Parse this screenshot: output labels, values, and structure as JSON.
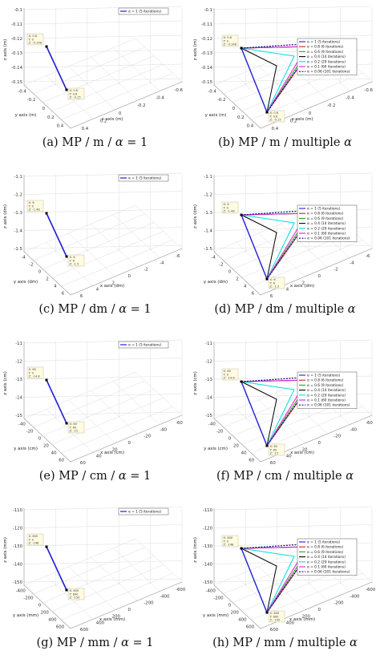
{
  "figure": {
    "panels": [
      {
        "caption_pre": "(a) MP / m / ",
        "caption_sym": "α",
        "caption_post": " = 1",
        "z_label": "z axis (m)",
        "y_label": "y axis (m)",
        "x_label": "x axis (m)",
        "z_ticks": [
          "-0.1",
          "-0.11",
          "-0.12",
          "-0.13",
          "-0.14",
          "-0.15"
        ],
        "y_ticks": [
          "-0.4",
          "-0.2",
          "0",
          "0.2",
          "0.4"
        ],
        "x_ticks": [
          "0.4",
          "0.2",
          "0",
          "-0.2",
          "-0.4",
          "-0.6"
        ],
        "tip_top": [
          "X: 0.6",
          "Y: 0",
          "Z: -0.148"
        ],
        "tip_bottom": [
          "X: 0.6",
          "Y: 0.6",
          "Z: -0.15"
        ]
      },
      {
        "caption_pre": "(b) MP / m / multiple ",
        "caption_sym": "α",
        "caption_post": "",
        "z_label": "z axis (m)",
        "y_label": "y axis (m)",
        "x_label": "x axis (m)",
        "z_ticks": [
          "-0.1",
          "-0.11",
          "-0.12",
          "-0.13",
          "-0.14",
          "-0.15"
        ],
        "y_ticks": [
          "-0.4",
          "-0.2",
          "0",
          "0.2",
          "0.4"
        ],
        "x_ticks": [
          "0.4",
          "0.2",
          "0",
          "-0.2",
          "-0.4",
          "-0.6"
        ],
        "tip_top": [
          "X: 0.6",
          "Y: 0",
          "Z: -0.148"
        ],
        "tip_bottom": [
          "X: 0.6",
          "Y: 0.6",
          "Z: -0.15"
        ]
      },
      {
        "caption_pre": "(c) MP / dm / ",
        "caption_sym": "α",
        "caption_post": " = 1",
        "z_label": "z axis (dm)",
        "y_label": "y axis (dm)",
        "x_label": "x axis (dm)",
        "z_ticks": [
          "-1.1",
          "-1.2",
          "-1.3",
          "-1.4",
          "-1.5"
        ],
        "y_ticks": [
          "-4",
          "-2",
          "0",
          "2",
          "4",
          "6"
        ],
        "x_ticks": [
          "6",
          "4",
          "2",
          "0",
          "-2",
          "-4",
          "-6"
        ],
        "tip_top": [
          "X: 6",
          "Y: 0",
          "Z: -1.48"
        ],
        "tip_bottom": [
          "X: 6",
          "Y: 6",
          "Z: -1.5"
        ]
      },
      {
        "caption_pre": "(d) MP / dm / multiple ",
        "caption_sym": "α",
        "caption_post": "",
        "z_label": "z axis (dm)",
        "y_label": "y axis (dm)",
        "x_label": "x axis (dm)",
        "z_ticks": [
          "-1.1",
          "-1.2",
          "-1.3",
          "-1.4",
          "-1.5"
        ],
        "y_ticks": [
          "-4",
          "-2",
          "0",
          "2",
          "4",
          "6"
        ],
        "x_ticks": [
          "6",
          "4",
          "2",
          "0",
          "-2",
          "-4",
          "-6"
        ],
        "tip_top": [
          "X: 6",
          "Y: 0",
          "Z: -1.48"
        ],
        "tip_bottom": [
          "X: 6",
          "Y: 6",
          "Z: -1.5"
        ]
      },
      {
        "caption_pre": "(e) MP / cm / ",
        "caption_sym": "α",
        "caption_post": " = 1",
        "z_label": "z axis (cm)",
        "y_label": "y axis (cm)",
        "x_label": "x axis (cm)",
        "z_ticks": [
          "-11",
          "-12",
          "-13",
          "-14",
          "-15"
        ],
        "y_ticks": [
          "-40",
          "-20",
          "0",
          "20",
          "40",
          "60"
        ],
        "x_ticks": [
          "60",
          "40",
          "20",
          "0",
          "-20",
          "-40",
          "-60"
        ],
        "tip_top": [
          "X: 60",
          "Y: 0",
          "Z: -14.8"
        ],
        "tip_bottom": [
          "X: 60",
          "Y: 60",
          "Z: -15"
        ]
      },
      {
        "caption_pre": "(f) MP / cm / multiple ",
        "caption_sym": "α",
        "caption_post": "",
        "z_label": "z axis (cm)",
        "y_label": "y axis (cm)",
        "x_label": "x axis (cm)",
        "z_ticks": [
          "-11",
          "-12",
          "-13",
          "-14",
          "-15"
        ],
        "y_ticks": [
          "-40",
          "-20",
          "0",
          "20",
          "40",
          "60"
        ],
        "x_ticks": [
          "60",
          "40",
          "20",
          "0",
          "-20",
          "-40",
          "-60"
        ],
        "tip_top": [
          "X: 60",
          "Y: 0",
          "Z: -14.8"
        ],
        "tip_bottom": [
          "X: 60",
          "Y: 60",
          "Z: -15"
        ]
      },
      {
        "caption_pre": "(g) MP / mm / ",
        "caption_sym": "α",
        "caption_post": " = 1",
        "z_label": "z axis (mm)",
        "y_label": "y axis (mm)",
        "x_label": "x axis (mm)",
        "z_ticks": [
          "-110",
          "-120",
          "-130",
          "-140",
          "-150"
        ],
        "y_ticks": [
          "-400",
          "-200",
          "0",
          "200",
          "400",
          "600"
        ],
        "x_ticks": [
          "600",
          "400",
          "200",
          "0",
          "-200",
          "-400",
          "-600"
        ],
        "tip_top": [
          "X: 600",
          "Y: 0",
          "Z: -148"
        ],
        "tip_bottom": [
          "X: 600",
          "Y: 600",
          "Z: -150"
        ]
      },
      {
        "caption_pre": "(h) MP / mm / multiple ",
        "caption_sym": "α",
        "caption_post": "",
        "z_label": "z axis (mm)",
        "y_label": "y axis (mm)",
        "x_label": "x axis (mm)",
        "z_ticks": [
          "-110",
          "-120",
          "-130",
          "-140",
          "-150"
        ],
        "y_ticks": [
          "-400",
          "-200",
          "0",
          "200",
          "400",
          "600"
        ],
        "x_ticks": [
          "600",
          "400",
          "200",
          "0",
          "-200",
          "-400",
          "-600"
        ],
        "tip_top": [
          "X: 600",
          "Y: 0",
          "Z: -148"
        ],
        "tip_bottom": [
          "X: 600",
          "Y: 600",
          "Z: -150"
        ]
      }
    ],
    "legend_single": [
      "α = 1 (5 iterations)"
    ],
    "legend_multi": [
      [
        "α = 1 (5 iterations)",
        "α = 0.8 (6 iterations)",
        "α = 0.6 (9 iterations)",
        "α = 0.4 (14 iterations)",
        "α = 0.2 (29 iterations)",
        "α = 0.1 (60 iterations)",
        "α = 0.06 (101 iterations)"
      ],
      [
        "α = 1 (5 iterations)",
        "α = 0.8 (6 iterations)",
        "α = 0.6 (9 iterations)",
        "α = 0.4 (14 iterations)",
        "α = 0.2 (29 iterations)",
        "α = 0.1 (60 iterations)",
        "α = 0.06 (101 iterations)"
      ],
      [
        "α = 1 (5 iterations)",
        "α = 0.8 (6 iterations)",
        "α = 0.6 (9 iterations)",
        "α = 0.4 (14 iterations)",
        "α = 0.2 (29 iterations)",
        "α = 0.1 (60 iterations)",
        "α = 0.06 (101 iterations)"
      ],
      [
        "α = 1 (5 iterations)",
        "α = 0.8 (6 iterations)",
        "α = 0.6 (9 iterations)",
        "α = 0.4 (14 iterations)",
        "α = 0.2 (29 iterations)",
        "α = 0.1 (60 iterations)",
        "α = 0.06 (101 iterations)"
      ]
    ],
    "series_colors": [
      "#1f1fd6",
      "#e01b1b",
      "#22a822",
      "#000000",
      "#00dede",
      "#e020e0",
      "#0a0a88"
    ]
  }
}
